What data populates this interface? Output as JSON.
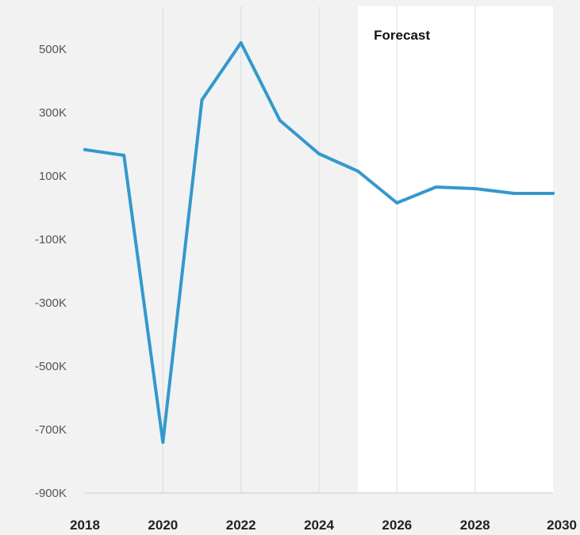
{
  "chart_data": {
    "type": "line",
    "title": "",
    "xlabel": "",
    "ylabel": "",
    "x": [
      2018,
      2019,
      2020,
      2021,
      2022,
      2023,
      2024,
      2025,
      2026,
      2027,
      2028,
      2029,
      2030
    ],
    "series": [
      {
        "values": [
          183000,
          165000,
          -740000,
          340000,
          520000,
          275000,
          170000,
          115000,
          15000,
          65000,
          60000,
          45000,
          45000
        ]
      }
    ],
    "xlim": [
      2018,
      2030
    ],
    "ylim": [
      -900000,
      600000
    ],
    "x_ticks": [
      2018,
      2020,
      2022,
      2024,
      2026,
      2028,
      2030
    ],
    "x_tick_labels": [
      "2018",
      "2020",
      "2022",
      "2024",
      "2026",
      "2028",
      "2030"
    ],
    "y_ticks": [
      500000,
      300000,
      100000,
      -100000,
      -300000,
      -500000,
      -700000,
      -900000
    ],
    "y_tick_labels": [
      "500K",
      "300K",
      "100K",
      "-100K",
      "-300K",
      "-500K",
      "-700K",
      "-900K"
    ],
    "grid": "vertical",
    "forecast_region": {
      "x_start": 2025,
      "x_end": 2030,
      "label": "Forecast"
    },
    "colors": {
      "line": "#3399cc",
      "background": "#f2f2f2",
      "forecast_background": "#ffffff",
      "grid": "#dddddd"
    }
  }
}
